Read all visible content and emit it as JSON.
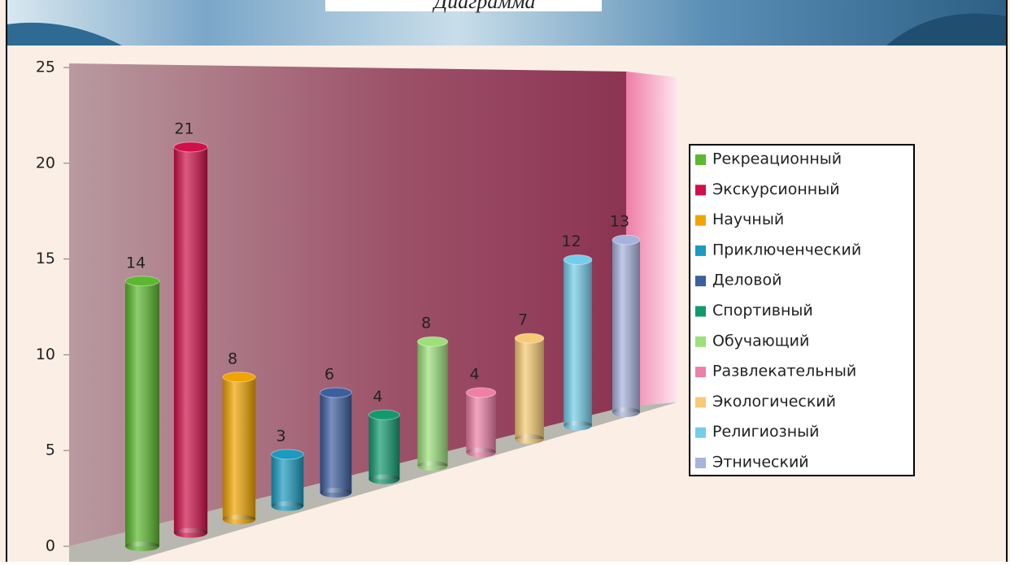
{
  "chart_data": {
    "type": "bar3d",
    "title": "Диаграмма",
    "categories": [
      "Рекреационный",
      "Экскурсионный",
      "Научный",
      "Приключенческий",
      "Деловой",
      "Спортивный",
      "Обучающий",
      "Развлекательный",
      "Экологический",
      "Религиозный",
      "Этнический"
    ],
    "values": [
      14,
      21,
      8,
      3,
      6,
      4,
      8,
      4,
      7,
      12,
      13
    ],
    "colors": [
      "#5cb82e",
      "#d0104a",
      "#f0a400",
      "#1a9bbf",
      "#3c5fa0",
      "#129a6e",
      "#9de07a",
      "#ee7fa6",
      "#f7cb73",
      "#74cdea",
      "#a6b3dd"
    ],
    "ylim": [
      0,
      25
    ],
    "yticks": [
      0,
      5,
      10,
      15,
      20,
      25
    ]
  }
}
